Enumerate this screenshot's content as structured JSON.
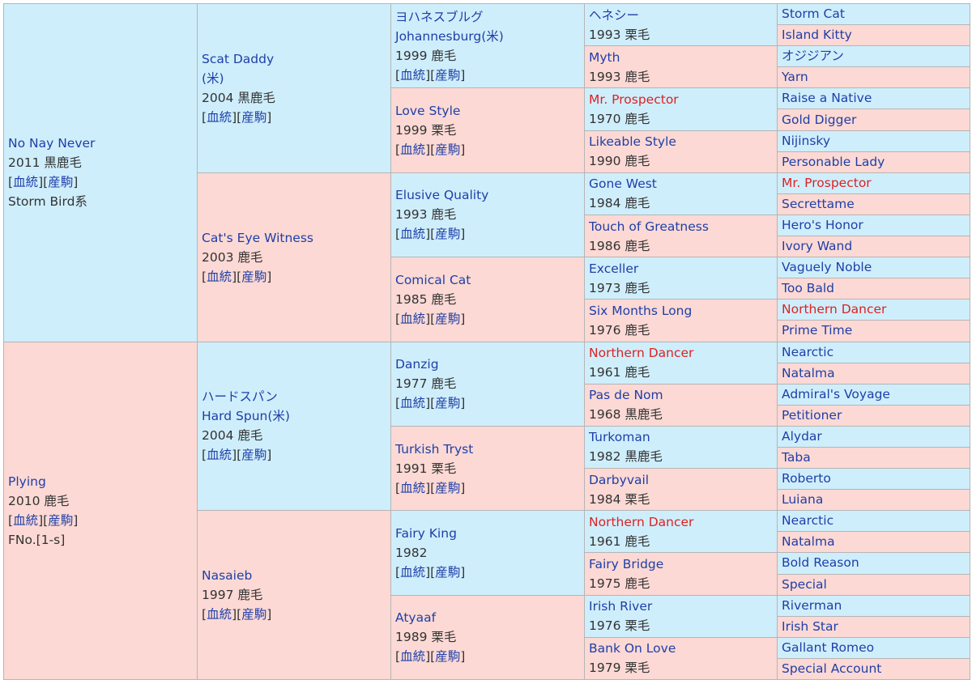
{
  "gen1": [
    {
      "name": "No Nay Never",
      "info": "2011 黒鹿毛",
      "link1": "血統",
      "link2": "産駒",
      "extra": "Storm Bird系"
    },
    {
      "name": "Plying",
      "info": "2010 鹿毛",
      "link1": "血統",
      "link2": "産駒",
      "extra": "FNo.[1-s]"
    }
  ],
  "gen2": [
    {
      "name": "Scat Daddy",
      "name2": "(米)",
      "info": "2004 黒鹿毛",
      "link1": "血統",
      "link2": "産駒"
    },
    {
      "name": "Cat's Eye Witness",
      "info": "2003 鹿毛",
      "link1": "血統",
      "link2": "産駒"
    },
    {
      "name": "ハードスパン",
      "name2": "Hard Spun(米)",
      "info": "2004 鹿毛",
      "link1": "血統",
      "link2": "産駒"
    },
    {
      "name": "Nasaieb",
      "info": "1997 鹿毛",
      "link1": "血統",
      "link2": "産駒"
    }
  ],
  "gen3": [
    {
      "name": "ヨハネスブルグ",
      "name2": "Johannesburg(米)",
      "info": "1999 鹿毛",
      "link1": "血統",
      "link2": "産駒"
    },
    {
      "name": "Love Style",
      "info": "1999 栗毛",
      "link1": "血統",
      "link2": "産駒"
    },
    {
      "name": "Elusive Quality",
      "info": "1993 鹿毛",
      "link1": "血統",
      "link2": "産駒"
    },
    {
      "name": "Comical Cat",
      "info": "1985 鹿毛",
      "link1": "血統",
      "link2": "産駒"
    },
    {
      "name": "Danzig",
      "info": "1977 鹿毛",
      "link1": "血統",
      "link2": "産駒"
    },
    {
      "name": "Turkish Tryst",
      "info": "1991 栗毛",
      "link1": "血統",
      "link2": "産駒"
    },
    {
      "name": "Fairy King",
      "info": "1982",
      "link1": "血統",
      "link2": "産駒"
    },
    {
      "name": "Atyaaf",
      "info": "1989 栗毛",
      "link1": "血統",
      "link2": "産駒"
    }
  ],
  "gen4": [
    {
      "name": "ヘネシー",
      "info": "1993 栗毛"
    },
    {
      "name": "Myth",
      "info": "1993 鹿毛"
    },
    {
      "name": "Mr. Prospector",
      "info": "1970 鹿毛"
    },
    {
      "name": "Likeable Style",
      "info": "1990 鹿毛"
    },
    {
      "name": "Gone West",
      "info": "1984 鹿毛"
    },
    {
      "name": "Touch of Greatness",
      "info": "1986 鹿毛"
    },
    {
      "name": "Exceller",
      "info": "1973 鹿毛"
    },
    {
      "name": "Six Months Long",
      "info": "1976 鹿毛"
    },
    {
      "name": "Northern Dancer",
      "info": "1961 鹿毛"
    },
    {
      "name": "Pas de Nom",
      "info": "1968 黒鹿毛"
    },
    {
      "name": "Turkoman",
      "info": "1982 黒鹿毛"
    },
    {
      "name": "Darbyvail",
      "info": "1984 栗毛"
    },
    {
      "name": "Northern Dancer",
      "info": "1961 鹿毛"
    },
    {
      "name": "Fairy Bridge",
      "info": "1975 鹿毛"
    },
    {
      "name": "Irish River",
      "info": "1976 栗毛"
    },
    {
      "name": "Bank On Love",
      "info": "1979 栗毛"
    }
  ],
  "gen5": [
    "Storm Cat",
    "Island Kitty",
    "オジジアン",
    "Yarn",
    "Raise a Native",
    "Gold Digger",
    "Nijinsky",
    "Personable Lady",
    "Mr. Prospector",
    "Secrettame",
    "Hero's Honor",
    "Ivory Wand",
    "Vaguely Noble",
    "Too Bald",
    "Northern Dancer",
    "Prime Time",
    "Nearctic",
    "Natalma",
    "Admiral's Voyage",
    "Petitioner",
    "Alydar",
    "Taba",
    "Roberto",
    "Luiana",
    "Nearctic",
    "Natalma",
    "Bold Reason",
    "Special",
    "Riverman",
    "Irish Star",
    "Gallant Romeo",
    "Special Account"
  ],
  "colors": {
    "male_bg": "#cfeefc",
    "female_bg": "#fcd9d4",
    "link": "#1f3fa8",
    "highlight": "#dd2222"
  }
}
